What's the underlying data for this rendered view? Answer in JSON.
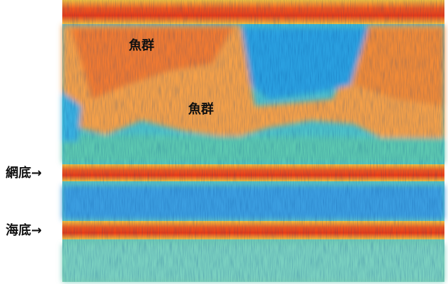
{
  "annotations": [
    {
      "text": "魚群"
    },
    {
      "text": "魚群"
    }
  ],
  "markers": [
    {
      "text": "網底→"
    },
    {
      "text": "海底→"
    }
  ]
}
